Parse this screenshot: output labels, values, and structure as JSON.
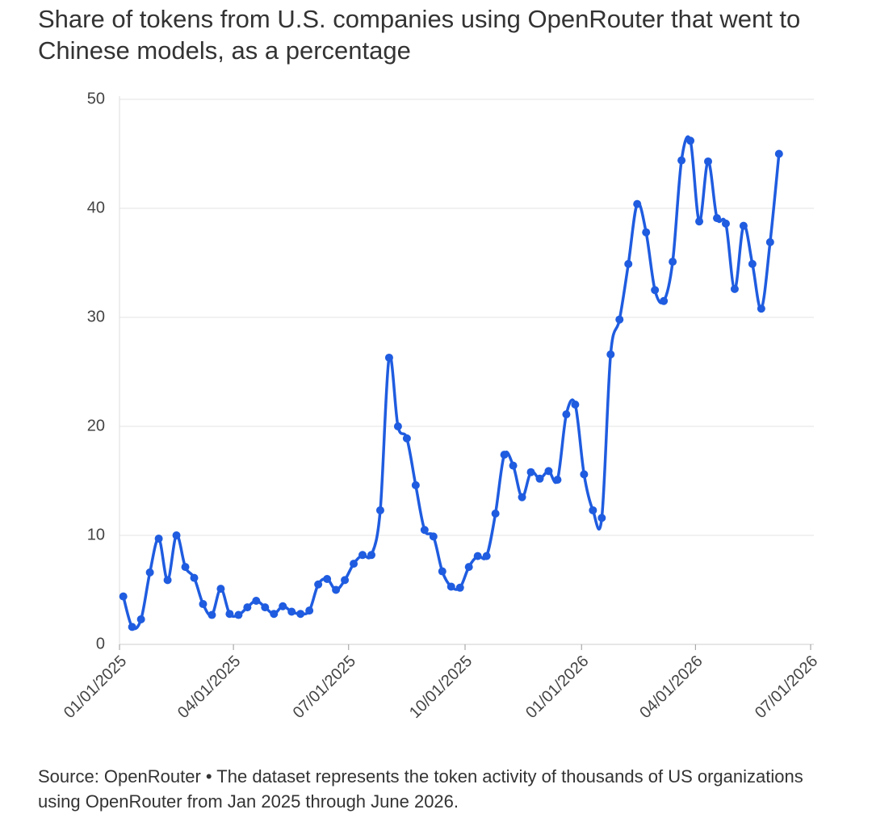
{
  "chart_data": {
    "type": "line",
    "title": "Share of tokens from U.S. companies using OpenRouter that went to Chinese models, as a percentage",
    "source": "Source: OpenRouter • The dataset represents the token activity of thousands of US organizations using OpenRouter from Jan 2025 through June 2026.",
    "x": [
      "2025-01-04",
      "2025-01-11",
      "2025-01-18",
      "2025-01-25",
      "2025-02-01",
      "2025-02-08",
      "2025-02-15",
      "2025-02-22",
      "2025-03-01",
      "2025-03-08",
      "2025-03-15",
      "2025-03-22",
      "2025-03-29",
      "2025-04-05",
      "2025-04-12",
      "2025-04-19",
      "2025-04-26",
      "2025-05-03",
      "2025-05-10",
      "2025-05-17",
      "2025-05-24",
      "2025-05-31",
      "2025-06-07",
      "2025-06-14",
      "2025-06-21",
      "2025-06-28",
      "2025-07-05",
      "2025-07-12",
      "2025-07-19",
      "2025-07-26",
      "2025-08-02",
      "2025-08-09",
      "2025-08-16",
      "2025-08-23",
      "2025-08-30",
      "2025-09-06",
      "2025-09-13",
      "2025-09-20",
      "2025-09-27",
      "2025-10-04",
      "2025-10-11",
      "2025-10-18",
      "2025-10-25",
      "2025-11-01",
      "2025-11-08",
      "2025-11-15",
      "2025-11-22",
      "2025-11-29",
      "2025-12-06",
      "2025-12-13",
      "2025-12-20",
      "2025-12-27",
      "2026-01-03",
      "2026-01-10",
      "2026-01-17",
      "2026-01-24",
      "2026-01-31",
      "2026-02-07",
      "2026-02-14",
      "2026-02-21",
      "2026-02-28",
      "2026-03-07",
      "2026-03-14",
      "2026-03-21",
      "2026-03-28",
      "2026-04-04",
      "2026-04-11",
      "2026-04-18",
      "2026-04-25",
      "2026-05-02",
      "2026-05-09",
      "2026-05-16",
      "2026-05-23",
      "2026-05-30",
      "2026-06-06"
    ],
    "series": [
      {
        "name": "Share of tokens",
        "color": "#1f5ce0",
        "values": [
          4.4,
          1.6,
          2.3,
          6.6,
          9.7,
          5.9,
          10.0,
          7.1,
          6.1,
          3.7,
          2.7,
          5.1,
          2.8,
          2.7,
          3.4,
          4.0,
          3.4,
          2.8,
          3.5,
          3.0,
          2.8,
          3.1,
          5.5,
          6.0,
          5.0,
          5.9,
          7.4,
          8.2,
          8.2,
          12.3,
          26.3,
          20.0,
          18.9,
          14.6,
          10.5,
          9.9,
          6.7,
          5.3,
          5.2,
          7.1,
          8.1,
          8.1,
          12.0,
          17.4,
          16.4,
          13.5,
          15.8,
          15.2,
          15.9,
          15.1,
          21.1,
          22.0,
          15.6,
          12.3,
          11.6,
          26.6,
          29.8,
          34.9,
          40.4,
          37.8,
          32.5,
          31.5,
          35.1,
          44.4,
          46.2,
          38.8,
          44.3,
          39.1,
          38.6,
          32.6,
          38.4,
          34.9,
          30.8,
          36.9,
          45.0
        ]
      }
    ],
    "xlim": [
      "2025-01-01",
      "2026-07-01"
    ],
    "xticks": [
      {
        "value": "2025-01-01",
        "label": "01/01/2025"
      },
      {
        "value": "2025-04-01",
        "label": "04/01/2025"
      },
      {
        "value": "2025-07-01",
        "label": "07/01/2025"
      },
      {
        "value": "2025-10-01",
        "label": "10/01/2025"
      },
      {
        "value": "2026-01-01",
        "label": "01/01/2026"
      },
      {
        "value": "2026-04-01",
        "label": "04/01/2026"
      },
      {
        "value": "2026-07-01",
        "label": "07/01/2026"
      }
    ],
    "ylim": [
      0,
      50
    ],
    "yticks": [
      0,
      10,
      20,
      30,
      40,
      50
    ],
    "grid": true
  }
}
